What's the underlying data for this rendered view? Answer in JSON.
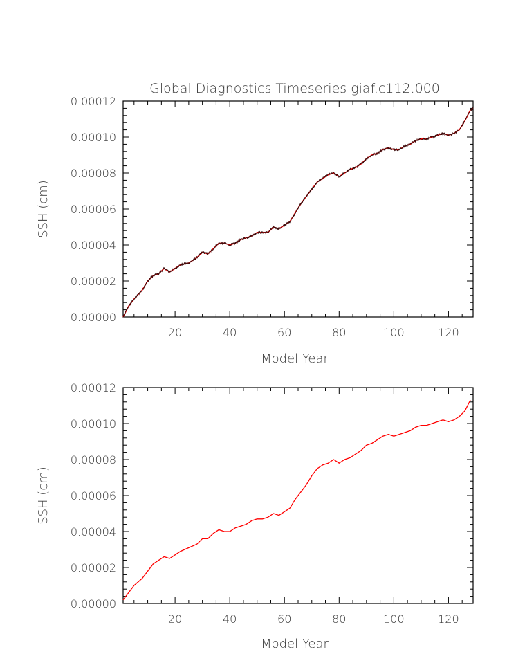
{
  "title": "Global Diagnostics Timeseries giaf.c112.000",
  "colors": {
    "raw": "#3a0d0d",
    "smooth": "#ff0000",
    "axis": "#000000",
    "text": "#3a3a3a"
  },
  "chart_data": [
    {
      "type": "line",
      "title": "Global Diagnostics Timeseries giaf.c112.000",
      "xlabel": "Model Year",
      "ylabel": "SSH (cm)",
      "xlim": [
        1,
        129
      ],
      "ylim": [
        0,
        0.00012
      ],
      "xticks": [
        20,
        40,
        60,
        80,
        100,
        120
      ],
      "xtick_labels": [
        "20",
        "40",
        "60",
        "80",
        "100",
        "120"
      ],
      "yticks": [
        0,
        2e-05,
        4e-05,
        6e-05,
        8e-05,
        0.0001,
        0.00012
      ],
      "ytick_labels": [
        "0.00000",
        "0.00002",
        "0.00004",
        "0.00006",
        "0.00008",
        "0.00010",
        "0.00012"
      ],
      "grid": false,
      "series": [
        {
          "style": "raw",
          "color": "#3a0d0d",
          "x": [
            1,
            3,
            5,
            8,
            10,
            12,
            14,
            16,
            18,
            20,
            22,
            25,
            28,
            30,
            32,
            34,
            36,
            38,
            40,
            42,
            44,
            46,
            48,
            50,
            52,
            54,
            56,
            58,
            60,
            62,
            64,
            66,
            68,
            70,
            72,
            74,
            76,
            78,
            80,
            82,
            84,
            86,
            88,
            90,
            92,
            94,
            96,
            98,
            100,
            102,
            104,
            106,
            108,
            110,
            112,
            114,
            116,
            118,
            120,
            122,
            124,
            126,
            128,
            129
          ],
          "y": [
            0.0,
            6e-06,
            1e-05,
            1.5e-05,
            2e-05,
            2.3e-05,
            2.4e-05,
            2.7e-05,
            2.5e-05,
            2.7e-05,
            2.9e-05,
            3e-05,
            3.3e-05,
            3.6e-05,
            3.5e-05,
            3.8e-05,
            4.1e-05,
            4.1e-05,
            4e-05,
            4.1e-05,
            4.3e-05,
            4.4e-05,
            4.5e-05,
            4.7e-05,
            4.7e-05,
            4.7e-05,
            5e-05,
            4.9e-05,
            5.1e-05,
            5.3e-05,
            5.8e-05,
            6.3e-05,
            6.7e-05,
            7.1e-05,
            7.5e-05,
            7.7e-05,
            7.9e-05,
            8e-05,
            7.8e-05,
            8e-05,
            8.2e-05,
            8.3e-05,
            8.5e-05,
            8.8e-05,
            9e-05,
            9.1e-05,
            9.3e-05,
            9.4e-05,
            9.3e-05,
            9.3e-05,
            9.5e-05,
            9.6e-05,
            9.8e-05,
            9.9e-05,
            9.9e-05,
            0.0001,
            0.000101,
            0.000102,
            0.000101,
            0.000102,
            0.000104,
            0.000109,
            0.000115,
            0.000116
          ]
        }
      ]
    },
    {
      "type": "line",
      "title": "",
      "xlabel": "Model Year",
      "ylabel": "SSH (cm)",
      "xlim": [
        1,
        129
      ],
      "ylim": [
        0,
        0.00012
      ],
      "xticks": [
        20,
        40,
        60,
        80,
        100,
        120
      ],
      "xtick_labels": [
        "20",
        "40",
        "60",
        "80",
        "100",
        "120"
      ],
      "yticks": [
        0,
        2e-05,
        4e-05,
        6e-05,
        8e-05,
        0.0001,
        0.00012
      ],
      "ytick_labels": [
        "0.00000",
        "0.00002",
        "0.00004",
        "0.00006",
        "0.00008",
        "0.00010",
        "0.00012"
      ],
      "grid": false,
      "series": [
        {
          "style": "smooth",
          "color": "#ff0000",
          "x": [
            1,
            3,
            5,
            8,
            10,
            12,
            14,
            16,
            18,
            20,
            22,
            25,
            28,
            30,
            32,
            34,
            36,
            38,
            40,
            42,
            44,
            46,
            48,
            50,
            52,
            54,
            56,
            58,
            60,
            62,
            64,
            66,
            68,
            70,
            72,
            74,
            76,
            78,
            80,
            82,
            84,
            86,
            88,
            90,
            92,
            94,
            96,
            98,
            100,
            102,
            104,
            106,
            108,
            110,
            112,
            114,
            116,
            118,
            120,
            122,
            124,
            126,
            128
          ],
          "y": [
            2e-06,
            6e-06,
            1e-05,
            1.4e-05,
            1.8e-05,
            2.2e-05,
            2.4e-05,
            2.6e-05,
            2.5e-05,
            2.7e-05,
            2.9e-05,
            3.1e-05,
            3.3e-05,
            3.6e-05,
            3.6e-05,
            3.9e-05,
            4.1e-05,
            4e-05,
            4e-05,
            4.2e-05,
            4.3e-05,
            4.4e-05,
            4.6e-05,
            4.7e-05,
            4.7e-05,
            4.8e-05,
            5e-05,
            4.9e-05,
            5.1e-05,
            5.3e-05,
            5.8e-05,
            6.2e-05,
            6.6e-05,
            7.1e-05,
            7.5e-05,
            7.7e-05,
            7.8e-05,
            8e-05,
            7.8e-05,
            8e-05,
            8.1e-05,
            8.3e-05,
            8.5e-05,
            8.8e-05,
            8.9e-05,
            9.1e-05,
            9.3e-05,
            9.4e-05,
            9.3e-05,
            9.4e-05,
            9.5e-05,
            9.6e-05,
            9.8e-05,
            9.9e-05,
            9.9e-05,
            0.0001,
            0.000101,
            0.000102,
            0.000101,
            0.000102,
            0.000104,
            0.000107,
            0.000113
          ]
        }
      ]
    }
  ]
}
